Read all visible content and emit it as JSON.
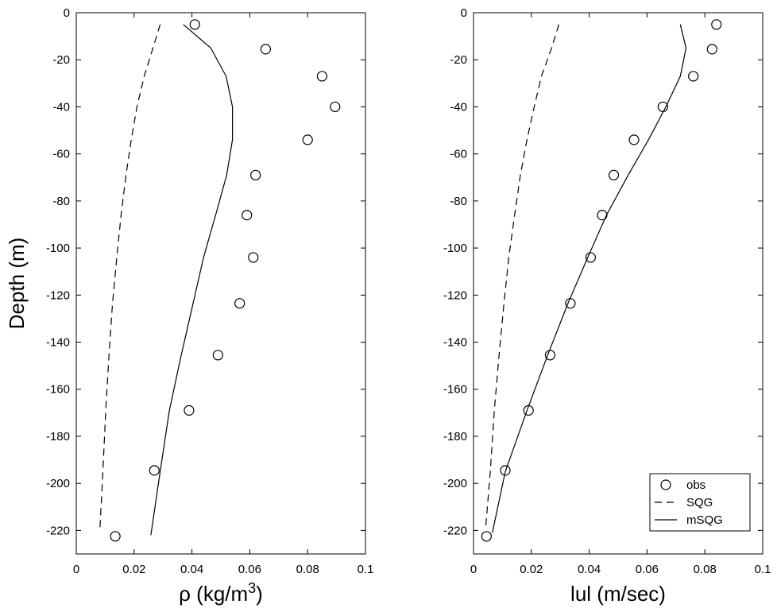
{
  "chart_data": [
    {
      "type": "line",
      "xlabel": "ρ (kg/m",
      "xlabel_sup": "3",
      "xlabel_tail": ")",
      "ylabel": "Depth (m)",
      "xlim": [
        0,
        0.1
      ],
      "ylim": [
        -230,
        0
      ],
      "xticks": [
        0,
        0.02,
        0.04,
        0.06,
        0.08,
        0.1
      ],
      "xtick_labels": [
        "0",
        "0.02",
        "0.04",
        "0.06",
        "0.08",
        "0.1"
      ],
      "yticks": [
        0,
        -20,
        -40,
        -60,
        -80,
        -100,
        -120,
        -140,
        -160,
        -180,
        -200,
        -220
      ],
      "ytick_labels": [
        "0",
        "-20",
        "-40",
        "-60",
        "-80",
        "-100",
        "-120",
        "-140",
        "-160",
        "-180",
        "-200",
        "-220"
      ],
      "grid": false,
      "series": [
        {
          "name": "obs",
          "style": "circle",
          "points": [
            [
              0.041,
              -5
            ],
            [
              0.0655,
              -15.5
            ],
            [
              0.085,
              -27
            ],
            [
              0.0895,
              -40
            ],
            [
              0.08,
              -54
            ],
            [
              0.062,
              -69
            ],
            [
              0.059,
              -86
            ],
            [
              0.0612,
              -104
            ],
            [
              0.0565,
              -123.5
            ],
            [
              0.049,
              -145.5
            ],
            [
              0.039,
              -169
            ],
            [
              0.027,
              -194.5
            ],
            [
              0.0135,
              -222.5
            ]
          ]
        },
        {
          "name": "SQG",
          "style": "dashed",
          "points": [
            [
              0.029,
              -5
            ],
            [
              0.0265,
              -15
            ],
            [
              0.0235,
              -27
            ],
            [
              0.021,
              -40
            ],
            [
              0.019,
              -54
            ],
            [
              0.0172,
              -69
            ],
            [
              0.0155,
              -86
            ],
            [
              0.014,
              -104
            ],
            [
              0.0125,
              -124
            ],
            [
              0.0113,
              -146
            ],
            [
              0.0102,
              -169
            ],
            [
              0.0092,
              -195
            ],
            [
              0.0082,
              -219
            ]
          ]
        },
        {
          "name": "mSQG",
          "style": "solid",
          "points": [
            [
              0.037,
              -5
            ],
            [
              0.0465,
              -15
            ],
            [
              0.0518,
              -27
            ],
            [
              0.054,
              -40
            ],
            [
              0.054,
              -54
            ],
            [
              0.052,
              -69
            ],
            [
              0.0482,
              -86
            ],
            [
              0.044,
              -104
            ],
            [
              0.0403,
              -124
            ],
            [
              0.0362,
              -146
            ],
            [
              0.0322,
              -169
            ],
            [
              0.029,
              -195
            ],
            [
              0.0258,
              -222
            ]
          ]
        }
      ]
    },
    {
      "type": "line",
      "xlabel": "lul (m/sec)",
      "ylabel": "",
      "xlim": [
        0,
        0.1
      ],
      "ylim": [
        -230,
        0
      ],
      "xticks": [
        0,
        0.02,
        0.04,
        0.06,
        0.08,
        0.1
      ],
      "xtick_labels": [
        "0",
        "0.02",
        "0.04",
        "0.06",
        "0.08",
        "0.1"
      ],
      "yticks": [
        0,
        -20,
        -40,
        -60,
        -80,
        -100,
        -120,
        -140,
        -160,
        -180,
        -200,
        -220
      ],
      "ytick_labels": [
        "0",
        "-20",
        "-40",
        "-60",
        "-80",
        "-100",
        "-120",
        "-140",
        "-160",
        "-180",
        "-200",
        "-220"
      ],
      "grid": false,
      "legend": {
        "placement": "bottom-right",
        "entries": [
          {
            "label": "obs",
            "style": "circle"
          },
          {
            "label": "SQG",
            "style": "dashed"
          },
          {
            "label": "mSQG",
            "style": "solid"
          }
        ]
      },
      "series": [
        {
          "name": "obs",
          "style": "circle",
          "points": [
            [
              0.084,
              -5
            ],
            [
              0.0825,
              -15.5
            ],
            [
              0.076,
              -27
            ],
            [
              0.0655,
              -40
            ],
            [
              0.0555,
              -54
            ],
            [
              0.0485,
              -69
            ],
            [
              0.0445,
              -86
            ],
            [
              0.0405,
              -104
            ],
            [
              0.0335,
              -123.5
            ],
            [
              0.0265,
              -145.5
            ],
            [
              0.019,
              -169
            ],
            [
              0.011,
              -194.5
            ],
            [
              0.0045,
              -222.5
            ]
          ]
        },
        {
          "name": "SQG",
          "style": "dashed",
          "points": [
            [
              0.0295,
              -5
            ],
            [
              0.027,
              -15
            ],
            [
              0.0235,
              -27
            ],
            [
              0.021,
              -40
            ],
            [
              0.0185,
              -54
            ],
            [
              0.0162,
              -69
            ],
            [
              0.0142,
              -86
            ],
            [
              0.0122,
              -104
            ],
            [
              0.0105,
              -124
            ],
            [
              0.0088,
              -146
            ],
            [
              0.0072,
              -169
            ],
            [
              0.0058,
              -195
            ],
            [
              0.0042,
              -219
            ]
          ]
        },
        {
          "name": "mSQG",
          "style": "solid",
          "points": [
            [
              0.0715,
              -5
            ],
            [
              0.0735,
              -15
            ],
            [
              0.0715,
              -27
            ],
            [
              0.0665,
              -40
            ],
            [
              0.0605,
              -54
            ],
            [
              0.0535,
              -69
            ],
            [
              0.046,
              -86
            ],
            [
              0.0395,
              -104
            ],
            [
              0.0325,
              -124
            ],
            [
              0.0255,
              -146
            ],
            [
              0.0185,
              -169
            ],
            [
              0.011,
              -195
            ],
            [
              0.0065,
              -221
            ]
          ]
        }
      ]
    }
  ]
}
